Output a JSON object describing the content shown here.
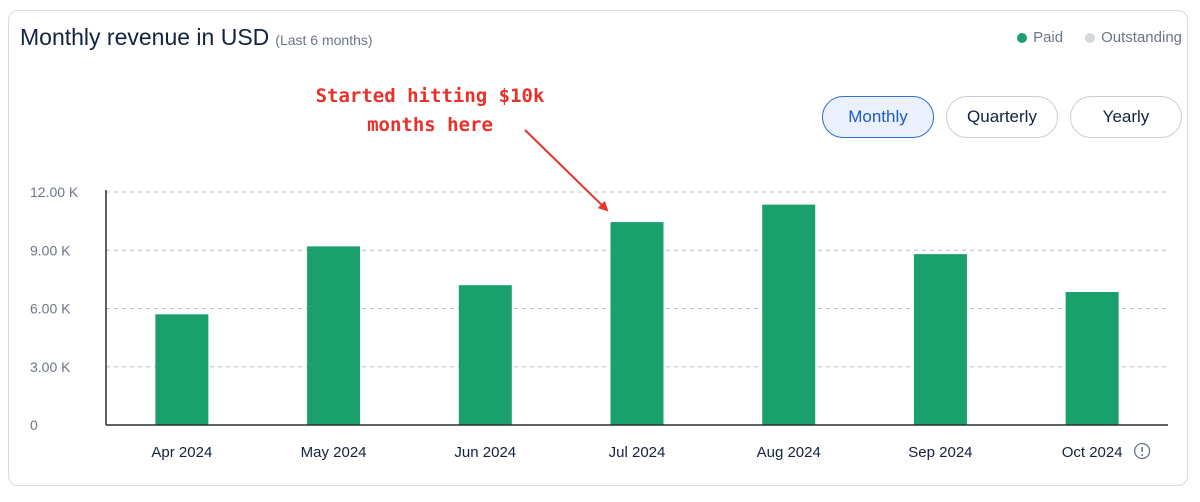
{
  "header": {
    "title": "Monthly revenue in USD",
    "subtitle": "(Last 6 months)"
  },
  "legend": {
    "items": [
      {
        "label": "Paid",
        "color": "#1aa06d"
      },
      {
        "label": "Outstanding",
        "color": "#d3d7de"
      }
    ]
  },
  "period_toggle": {
    "options": [
      "Monthly",
      "Quarterly",
      "Yearly"
    ],
    "selected": "Monthly"
  },
  "annotation": {
    "line1": "Started hitting $10k",
    "line2": "months here",
    "color": "#e8312a",
    "points_to_category": "Jul 2024"
  },
  "info_icon": "info-circle-icon",
  "chart_data": {
    "type": "bar",
    "categories": [
      "Apr 2024",
      "May 2024",
      "Jun 2024",
      "Jul 2024",
      "Aug 2024",
      "Sep 2024",
      "Oct 2024"
    ],
    "series": [
      {
        "name": "Paid",
        "values": [
          5700,
          9200,
          7200,
          10450,
          11350,
          8800,
          6850
        ],
        "color": "#1aa06d"
      }
    ],
    "ylim": [
      0,
      12000
    ],
    "yticks": [
      0,
      3000,
      6000,
      9000,
      12000
    ],
    "ytick_labels": [
      "0",
      "3.00 K",
      "6.00 K",
      "9.00 K",
      "12.00 K"
    ],
    "grid": true,
    "legend": "top-right"
  }
}
